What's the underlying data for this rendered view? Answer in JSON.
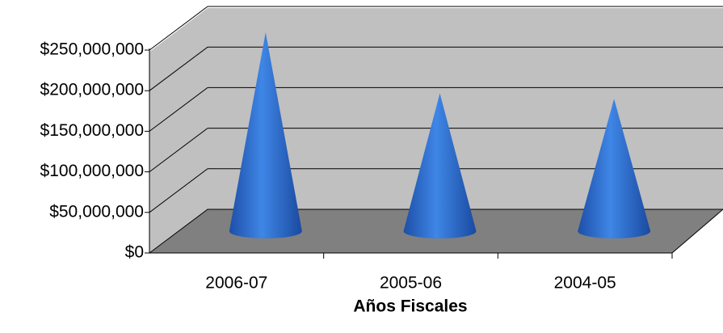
{
  "chart_data": {
    "type": "cone",
    "x_label": "Años Fiscales",
    "categories": [
      "2006-07",
      "2005-06",
      "2004-05"
    ],
    "values": [
      245000000,
      170000000,
      163000000
    ],
    "color": "#2f6fd0",
    "ylim": [
      0,
      250000000
    ],
    "yticks": [
      {
        "value": 0,
        "label": "$0"
      },
      {
        "value": 50000000,
        "label": "$50,000,000"
      },
      {
        "value": 100000000,
        "label": "$100,000,000"
      },
      {
        "value": 150000000,
        "label": "$150,000,000"
      },
      {
        "value": 200000000,
        "label": "$200,000,000"
      },
      {
        "value": 250000000,
        "label": "$250,000,000"
      }
    ],
    "grid": true
  }
}
